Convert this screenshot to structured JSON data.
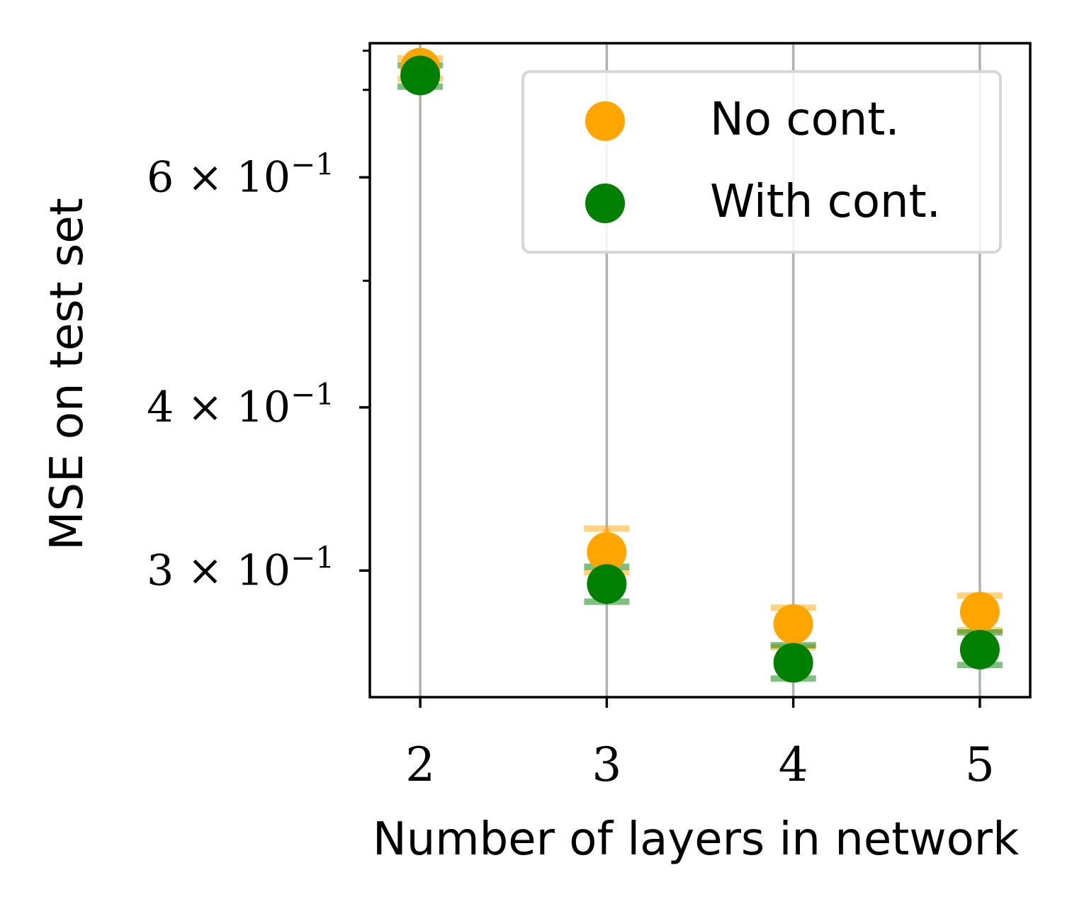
{
  "chart_data": {
    "type": "scatter",
    "title": "",
    "xlabel": "Number of layers in network",
    "ylabel": "MSE on test set",
    "x_categories": [
      2,
      3,
      4,
      5
    ],
    "y_scale": "log",
    "ylim": [
      0.24,
      0.76
    ],
    "y_ticks": [
      {
        "value": 0.3,
        "mantissa": "3",
        "label": "3 × 10⁻¹"
      },
      {
        "value": 0.4,
        "mantissa": "4",
        "label": "4 × 10⁻¹"
      },
      {
        "value": 0.6,
        "mantissa": "6",
        "label": "6 × 10⁻¹"
      }
    ],
    "y_minor_ticks": [
      0.5,
      0.7,
      0.75
    ],
    "grid": "vertical",
    "legend": "top-right",
    "series": [
      {
        "name": "No cont.",
        "color": "#FFA500",
        "x": [
          2,
          3,
          4,
          5
        ],
        "y": [
          0.728,
          0.31,
          0.273,
          0.279
        ],
        "err_low": [
          0.714,
          0.299,
          0.262,
          0.27
        ],
        "err_high": [
          0.74,
          0.323,
          0.281,
          0.287
        ]
      },
      {
        "name": "With cont.",
        "color": "#008000",
        "x": [
          2,
          3,
          4,
          5
        ],
        "y": [
          0.718,
          0.293,
          0.255,
          0.261
        ],
        "err_low": [
          0.704,
          0.284,
          0.248,
          0.254
        ],
        "err_high": [
          0.731,
          0.302,
          0.263,
          0.269
        ]
      }
    ]
  }
}
